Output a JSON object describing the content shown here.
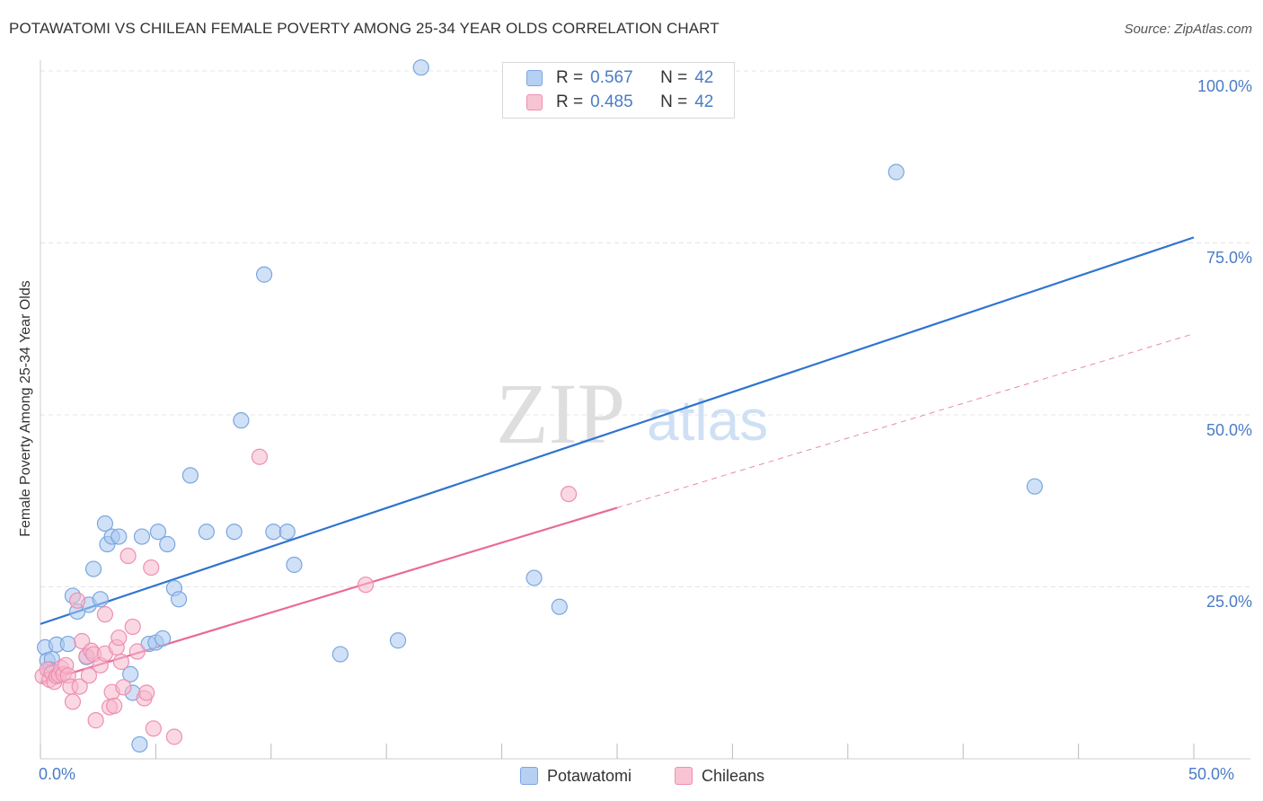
{
  "title": "POTAWATOMI VS CHILEAN FEMALE POVERTY AMONG 25-34 YEAR OLDS CORRELATION CHART",
  "source": "Source: ZipAtlas.com",
  "watermark": {
    "zip": "ZIP",
    "atlas": "atlas"
  },
  "colors": {
    "potawatomi_fill": "#a9c8f0",
    "potawatomi_stroke": "#7aa6e0",
    "potawatomi_line": "#2f74d0",
    "chileans_fill": "#f6b8cc",
    "chileans_stroke": "#ee8fb0",
    "chileans_line": "#e86a98",
    "tick_text": "#4a7cc7",
    "grid": "#e4e4e4"
  },
  "legend": {
    "rows": [
      {
        "r_label": "R =",
        "r_value": "0.567",
        "n_label": "N =",
        "n_value": "42"
      },
      {
        "r_label": "R =",
        "r_value": "0.485",
        "n_label": "N =",
        "n_value": "42"
      }
    ]
  },
  "chart_data": {
    "type": "scatter",
    "title": "POTAWATOMI VS CHILEAN FEMALE POVERTY AMONG 25-34 YEAR OLDS CORRELATION CHART",
    "xlabel": "",
    "ylabel": "Female Poverty Among 25-34 Year Olds",
    "xlim": [
      0,
      50
    ],
    "ylim": [
      0,
      100
    ],
    "x_tick_labels": [
      "0.0%",
      "50.0%"
    ],
    "y_tick_labels": [
      "100.0%",
      "75.0%",
      "50.0%",
      "25.0%"
    ],
    "y_tick_values": [
      100,
      75,
      50,
      25
    ],
    "grid": true,
    "series": [
      {
        "name": "Potawatomi",
        "r": 0.567,
        "n": 42,
        "trend": {
          "x": [
            0,
            50
          ],
          "y": [
            19.6,
            75.8
          ],
          "dashed_extension": false
        },
        "points": [
          [
            0.2,
            16.2
          ],
          [
            0.3,
            14.3
          ],
          [
            0.5,
            14.5
          ],
          [
            0.7,
            16.6
          ],
          [
            1.2,
            16.7
          ],
          [
            1.4,
            23.7
          ],
          [
            1.6,
            21.4
          ],
          [
            2.0,
            14.8
          ],
          [
            2.1,
            22.4
          ],
          [
            2.3,
            27.6
          ],
          [
            2.6,
            23.2
          ],
          [
            2.8,
            34.2
          ],
          [
            2.9,
            31.2
          ],
          [
            3.1,
            32.3
          ],
          [
            3.4,
            32.3
          ],
          [
            3.9,
            12.3
          ],
          [
            4.0,
            9.6
          ],
          [
            4.3,
            2.1
          ],
          [
            4.4,
            32.3
          ],
          [
            4.7,
            16.7
          ],
          [
            5.0,
            16.9
          ],
          [
            5.1,
            33.0
          ],
          [
            5.3,
            17.5
          ],
          [
            5.5,
            31.2
          ],
          [
            5.8,
            24.8
          ],
          [
            6.0,
            23.2
          ],
          [
            6.5,
            41.2
          ],
          [
            7.2,
            33.0
          ],
          [
            8.4,
            33.0
          ],
          [
            8.7,
            49.2
          ],
          [
            9.7,
            70.4
          ],
          [
            10.1,
            33.0
          ],
          [
            10.7,
            33.0
          ],
          [
            11.0,
            28.2
          ],
          [
            13.0,
            15.2
          ],
          [
            15.5,
            17.2
          ],
          [
            16.5,
            100.5
          ],
          [
            21.4,
            26.3
          ],
          [
            22.5,
            22.1
          ],
          [
            37.1,
            85.3
          ],
          [
            43.1,
            39.6
          ],
          [
            0.4,
            13.0
          ]
        ]
      },
      {
        "name": "Chileans",
        "r": 0.485,
        "n": 42,
        "trend": {
          "x": [
            0,
            25
          ],
          "y": [
            11.1,
            36.5
          ],
          "dashed_extension": true,
          "dashed_to": {
            "x": 50,
            "y": 61.8
          }
        },
        "points": [
          [
            0.1,
            12.0
          ],
          [
            0.3,
            13.0
          ],
          [
            0.4,
            11.5
          ],
          [
            0.5,
            12.5
          ],
          [
            0.6,
            11.2
          ],
          [
            0.7,
            12.0
          ],
          [
            0.8,
            12.2
          ],
          [
            0.9,
            13.2
          ],
          [
            1.0,
            12.3
          ],
          [
            1.1,
            13.6
          ],
          [
            1.2,
            12.1
          ],
          [
            1.3,
            10.5
          ],
          [
            1.4,
            8.3
          ],
          [
            1.6,
            23.0
          ],
          [
            1.7,
            10.5
          ],
          [
            1.8,
            17.1
          ],
          [
            2.0,
            14.9
          ],
          [
            2.1,
            12.1
          ],
          [
            2.2,
            15.7
          ],
          [
            2.3,
            15.2
          ],
          [
            2.4,
            5.6
          ],
          [
            2.6,
            13.6
          ],
          [
            2.8,
            15.3
          ],
          [
            2.8,
            21.0
          ],
          [
            3.0,
            7.5
          ],
          [
            3.1,
            9.7
          ],
          [
            3.2,
            7.7
          ],
          [
            3.3,
            16.2
          ],
          [
            3.4,
            17.6
          ],
          [
            3.5,
            14.1
          ],
          [
            3.6,
            10.4
          ],
          [
            3.8,
            29.5
          ],
          [
            4.0,
            19.2
          ],
          [
            4.2,
            15.6
          ],
          [
            4.5,
            8.8
          ],
          [
            4.6,
            9.6
          ],
          [
            4.8,
            27.8
          ],
          [
            4.9,
            4.4
          ],
          [
            5.8,
            3.2
          ],
          [
            9.5,
            43.9
          ],
          [
            14.1,
            25.3
          ],
          [
            22.9,
            38.5
          ]
        ]
      }
    ]
  },
  "bottom_legend": {
    "items": [
      "Potawatomi",
      "Chileans"
    ]
  }
}
